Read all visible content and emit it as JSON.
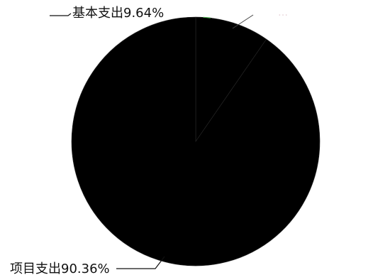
{
  "chart_data": {
    "type": "pie",
    "title": "",
    "slices": [
      {
        "label": "基本支出9.64%",
        "name": "基本支出",
        "value": 9.64,
        "color": "#000000"
      },
      {
        "label": "项目支出90.36%",
        "name": "项目支出",
        "value": 90.36,
        "color": "#000000"
      }
    ],
    "faint_text": "…",
    "legend": "none"
  }
}
